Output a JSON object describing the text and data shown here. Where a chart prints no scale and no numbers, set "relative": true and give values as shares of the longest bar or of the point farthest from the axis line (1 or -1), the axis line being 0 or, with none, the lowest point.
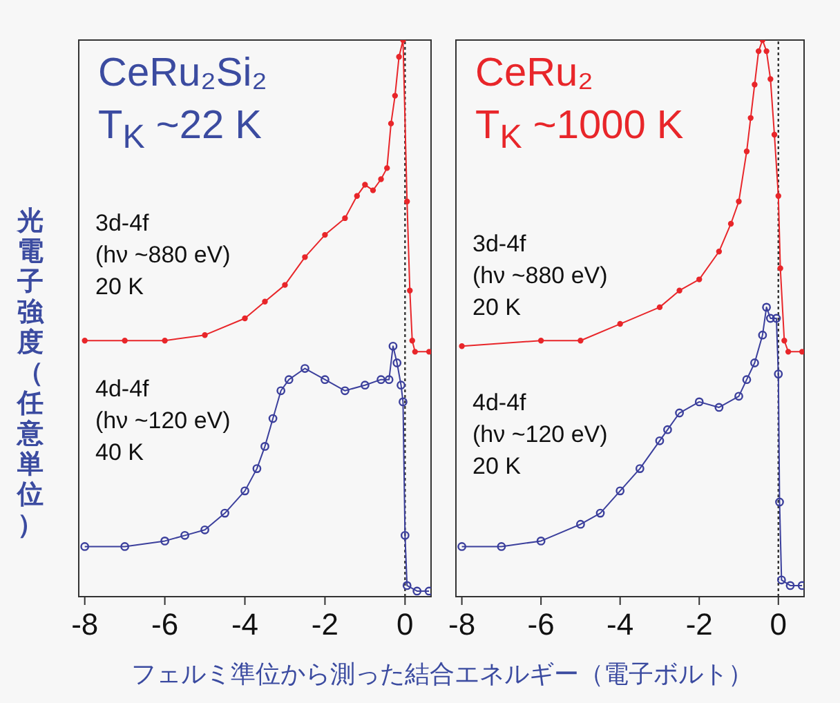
{
  "chart_data": [
    {
      "type": "line",
      "title": "CeRu₂Si₂",
      "subtitle": "T$_{K}$ ~22 K",
      "ylabel": "光電子強度（任意単位）",
      "xlabel": "フェルミ準位から測った結合エネルギー（電子ボルト）",
      "relative": true,
      "marker": "circle",
      "line_style": "solid",
      "xlim": [
        -8.15,
        0.65
      ],
      "xticks": [
        -8,
        -6,
        -4,
        -2,
        0
      ],
      "annotations": [
        "3d-4f\n(hν ~880 eV)\n20 K",
        "4d-4f\n(hν ~120 eV)\n40 K"
      ],
      "ref_lines": [
        {
          "axis": "x",
          "value": 0,
          "color": "#333333",
          "line_style": "dotted"
        }
      ],
      "series": [
        {
          "color": "#e8262a",
          "x": [
            -8,
            -7,
            -6,
            -5,
            -4,
            -3.5,
            -3,
            -2.5,
            -2,
            -1.5,
            -1.2,
            -1,
            -0.8,
            -0.6,
            -0.45,
            -0.35,
            -0.25,
            -0.15,
            -0.05,
            0.05,
            0.12,
            0.18,
            0.25,
            0.6
          ],
          "values": [
            0.46,
            0.46,
            0.46,
            0.47,
            0.5,
            0.53,
            0.56,
            0.61,
            0.65,
            0.68,
            0.72,
            0.74,
            0.73,
            0.75,
            0.77,
            0.85,
            0.9,
            0.97,
            1,
            0.71,
            0.55,
            0.46,
            0.44,
            0.44
          ]
        },
        {
          "color": "#3b3f9c",
          "x": [
            -8,
            -7,
            -6,
            -5.5,
            -5,
            -4.5,
            -4,
            -3.7,
            -3.5,
            -3.3,
            -3.1,
            -2.9,
            -2.5,
            -2,
            -1.5,
            -1,
            -0.6,
            -0.4,
            -0.3,
            -0.2,
            -0.1,
            -0.05,
            0,
            0.05,
            0.3,
            0.6
          ],
          "values": [
            0.09,
            0.09,
            0.1,
            0.11,
            0.12,
            0.15,
            0.19,
            0.23,
            0.27,
            0.32,
            0.37,
            0.39,
            0.41,
            0.39,
            0.37,
            0.38,
            0.39,
            0.39,
            0.45,
            0.42,
            0.38,
            0.35,
            0.11,
            0.02,
            0.01,
            0.01
          ]
        }
      ]
    },
    {
      "type": "line",
      "title": "CeRu₂",
      "subtitle": "T$_{K}$ ~1000 K",
      "relative": true,
      "marker": "circle",
      "line_style": "solid",
      "xlim": [
        -8.15,
        0.65
      ],
      "xticks": [
        -8,
        -6,
        -4,
        -2,
        0
      ],
      "annotations": [
        "3d-4f\n(hν ~880 eV)\n20 K",
        "4d-4f\n(hν ~120 eV)\n20 K"
      ],
      "ref_lines": [
        {
          "axis": "x",
          "value": 0,
          "color": "#333333",
          "line_style": "dotted"
        }
      ],
      "series": [
        {
          "color": "#e8262a",
          "x": [
            -8,
            -6,
            -5,
            -4,
            -3,
            -2.5,
            -2,
            -1.5,
            -1.2,
            -1,
            -0.8,
            -0.7,
            -0.6,
            -0.5,
            -0.4,
            -0.3,
            -0.2,
            -0.1,
            0,
            0.05,
            0.15,
            0.25,
            0.6
          ],
          "values": [
            0.45,
            0.46,
            0.46,
            0.49,
            0.52,
            0.55,
            0.57,
            0.62,
            0.67,
            0.71,
            0.8,
            0.86,
            0.92,
            0.98,
            1,
            0.98,
            0.93,
            0.83,
            0.72,
            0.59,
            0.46,
            0.44,
            0.44
          ]
        },
        {
          "color": "#3b3f9c",
          "x": [
            -8,
            -7,
            -6,
            -5,
            -4.5,
            -4,
            -3.5,
            -3,
            -2.8,
            -2.5,
            -2,
            -1.5,
            -1,
            -0.8,
            -0.6,
            -0.4,
            -0.3,
            -0.2,
            -0.05,
            0,
            0.03,
            0.08,
            0.3,
            0.6
          ],
          "values": [
            0.09,
            0.09,
            0.1,
            0.13,
            0.15,
            0.19,
            0.23,
            0.28,
            0.3,
            0.33,
            0.35,
            0.34,
            0.36,
            0.39,
            0.42,
            0.47,
            0.52,
            0.5,
            0.5,
            0.4,
            0.17,
            0.03,
            0.02,
            0.02
          ]
        }
      ]
    }
  ]
}
